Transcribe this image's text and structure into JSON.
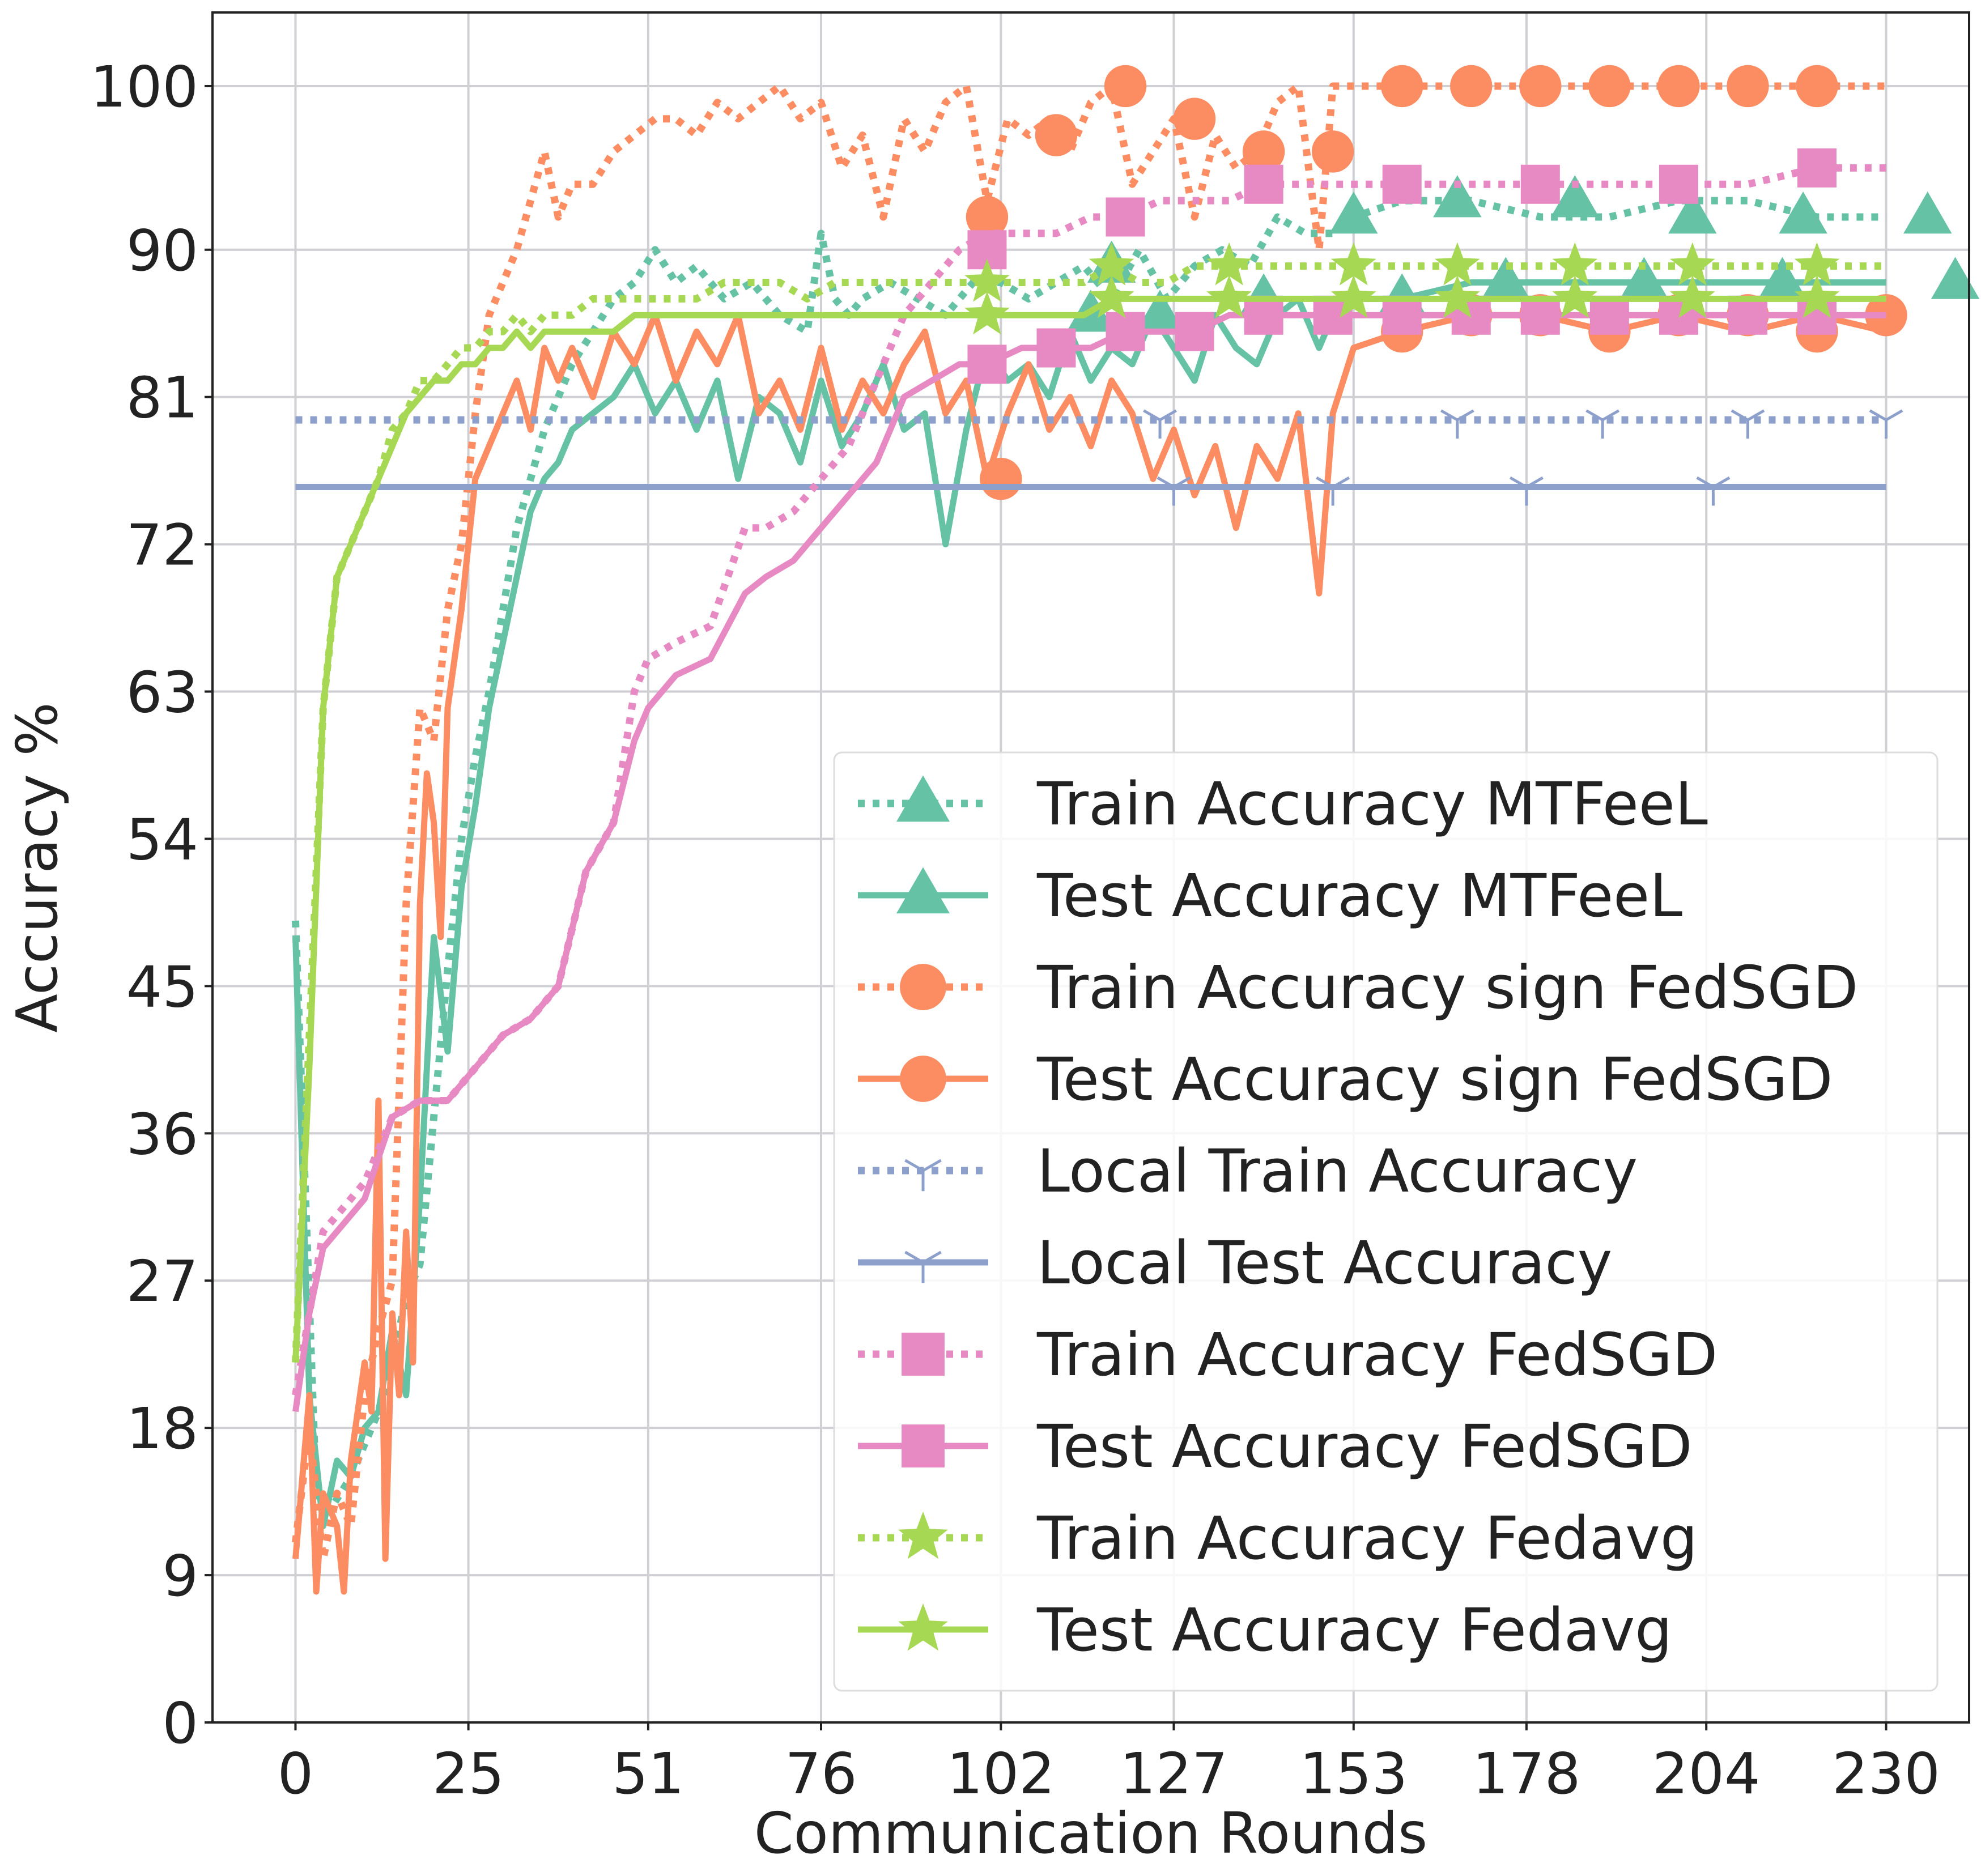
{
  "chart_data": {
    "type": "line",
    "title": "",
    "xlabel": "Communication Rounds",
    "ylabel": "Accuracy %",
    "xlim": [
      -12,
      242
    ],
    "ylim": [
      0,
      104.5
    ],
    "xticks": [
      0,
      25,
      51,
      76,
      102,
      127,
      153,
      178,
      204,
      230
    ],
    "xtick_labels": [
      "0",
      "25",
      "51",
      "76",
      "102",
      "127",
      "153",
      "178",
      "204",
      "230"
    ],
    "yticks": [
      0,
      9,
      18,
      27,
      36,
      45,
      54,
      63,
      72,
      81,
      90,
      100
    ],
    "ytick_labels": [
      "0",
      "9",
      "18",
      "27",
      "36",
      "45",
      "54",
      "63",
      "72",
      "81",
      "90",
      "100"
    ],
    "grid": true,
    "legend_position": "lower-right",
    "series": [
      {
        "name": "Train Accuracy MTFeeL",
        "color": "#66c2a5",
        "style": "dotted",
        "marker": "triangle",
        "x": [
          0,
          3,
          5,
          8,
          10,
          12,
          14,
          16,
          18,
          20,
          22,
          24,
          26,
          28,
          30,
          32,
          34,
          36,
          38,
          40,
          43,
          46,
          49,
          52,
          55,
          58,
          62,
          66,
          70,
          74,
          76,
          78,
          80,
          82,
          86,
          90,
          94,
          98,
          102,
          106,
          110,
          114,
          118,
          122,
          126,
          130,
          134,
          138,
          142,
          146,
          150,
          153,
          160,
          170,
          180,
          190,
          200,
          210,
          220,
          230
        ],
        "y": [
          49,
          14,
          13,
          15,
          17,
          19,
          22,
          26,
          28,
          37,
          46,
          54,
          59,
          63,
          68,
          73,
          76,
          79,
          81,
          83,
          85,
          87,
          88,
          90,
          88,
          89,
          87,
          88,
          86,
          85,
          91,
          87,
          86,
          87,
          88,
          87,
          86,
          88,
          88,
          87,
          88,
          89,
          87,
          90,
          87,
          89,
          90,
          89,
          92,
          91,
          91,
          92,
          93,
          93,
          92,
          92,
          93,
          93,
          92,
          92
        ],
        "marker_x": [
          118,
          153,
          168,
          185,
          202,
          218,
          236
        ],
        "marker_y": [
          89,
          92,
          93,
          93,
          92,
          92,
          92
        ]
      },
      {
        "name": "Test Accuracy MTFeeL",
        "color": "#66c2a5",
        "style": "solid",
        "marker": "triangle",
        "x": [
          0,
          2,
          4,
          6,
          8,
          10,
          12,
          14,
          16,
          18,
          20,
          22,
          24,
          26,
          28,
          30,
          32,
          34,
          36,
          38,
          40,
          43,
          46,
          49,
          52,
          55,
          58,
          61,
          64,
          67,
          70,
          73,
          76,
          79,
          82,
          85,
          88,
          91,
          94,
          97,
          100,
          103,
          106,
          109,
          112,
          115,
          118,
          121,
          124,
          127,
          130,
          133,
          136,
          139,
          142,
          145,
          148,
          150,
          153,
          160,
          170,
          180,
          190,
          200,
          210,
          220,
          230
        ],
        "y": [
          48,
          20,
          12,
          16,
          15,
          18,
          19,
          24,
          20,
          32,
          48,
          41,
          51,
          56,
          62,
          66,
          70,
          74,
          76,
          77,
          79,
          80,
          81,
          83,
          80,
          82,
          79,
          82,
          76,
          81,
          80,
          77,
          82,
          78,
          80,
          83,
          79,
          80,
          72,
          79,
          84,
          82,
          83,
          81,
          85,
          82,
          84,
          83,
          86,
          84,
          82,
          86,
          84,
          83,
          86,
          87,
          84,
          86,
          87,
          87,
          88,
          88,
          88,
          88,
          88,
          88,
          88
        ],
        "marker_x": [
          115,
          125,
          140,
          160,
          175,
          195,
          215,
          240
        ],
        "marker_y": [
          86,
          86,
          87,
          87,
          88,
          88,
          88,
          88
        ]
      },
      {
        "name": "Train Accuracy sign FedSGD",
        "color": "#fc8d62",
        "style": "dotted",
        "marker": "circle",
        "x": [
          0,
          2,
          4,
          6,
          8,
          10,
          12,
          14,
          16,
          18,
          20,
          22,
          24,
          26,
          28,
          30,
          32,
          34,
          36,
          38,
          40,
          43,
          46,
          49,
          52,
          55,
          58,
          61,
          64,
          67,
          70,
          73,
          76,
          79,
          82,
          85,
          88,
          91,
          94,
          97,
          100,
          103,
          106,
          109,
          112,
          115,
          118,
          121,
          124,
          127,
          130,
          133,
          136,
          139,
          142,
          145,
          148,
          150,
          153,
          160,
          170,
          180,
          190,
          200,
          210,
          220,
          230
        ],
        "y": [
          11,
          18,
          10,
          14,
          12,
          20,
          24,
          27,
          50,
          62,
          60,
          68,
          72,
          80,
          86,
          88,
          90,
          93,
          96,
          92,
          94,
          94,
          96,
          97,
          98,
          98,
          97,
          99,
          98,
          99,
          100,
          98,
          99,
          95,
          97,
          92,
          98,
          96,
          99,
          100,
          93,
          98,
          97,
          98,
          96,
          99,
          100,
          94,
          96,
          98,
          92,
          97,
          95,
          96,
          99,
          100,
          90,
          100,
          100,
          100,
          100,
          100,
          100,
          100,
          100,
          100,
          100
        ],
        "marker_x": [
          100,
          110,
          120,
          130,
          140,
          150,
          160,
          170,
          180,
          190,
          200,
          210,
          220
        ],
        "marker_y": [
          92,
          97,
          100,
          98,
          96,
          96,
          100,
          100,
          100,
          100,
          100,
          100,
          100
        ]
      },
      {
        "name": "Test Accuracy sign FedSGD",
        "color": "#fc8d62",
        "style": "solid",
        "marker": "circle",
        "x": [
          0,
          2,
          3,
          4,
          6,
          7,
          8,
          10,
          11,
          12,
          13,
          14,
          15,
          16,
          17,
          18,
          19,
          20,
          21,
          22,
          24,
          26,
          28,
          30,
          32,
          34,
          36,
          38,
          40,
          43,
          46,
          49,
          52,
          55,
          58,
          61,
          64,
          67,
          70,
          73,
          76,
          79,
          82,
          85,
          88,
          91,
          94,
          97,
          100,
          103,
          106,
          109,
          112,
          115,
          118,
          121,
          124,
          127,
          130,
          133,
          136,
          139,
          142,
          145,
          148,
          150,
          153,
          160,
          170,
          180,
          190,
          200,
          210,
          220,
          230
        ],
        "y": [
          10,
          20,
          8,
          14,
          12,
          8,
          16,
          22,
          19,
          38,
          10,
          25,
          20,
          30,
          22,
          50,
          58,
          55,
          48,
          62,
          68,
          76,
          78,
          80,
          82,
          79,
          84,
          82,
          84,
          81,
          85,
          83,
          86,
          82,
          85,
          83,
          86,
          80,
          82,
          79,
          84,
          79,
          82,
          80,
          83,
          85,
          80,
          82,
          76,
          80,
          83,
          79,
          81,
          78,
          82,
          80,
          76,
          79,
          75,
          78,
          73,
          78,
          76,
          80,
          69,
          80,
          84,
          85,
          86,
          86,
          85,
          86,
          85,
          86,
          85
        ],
        "marker_x": [
          102,
          160,
          170,
          180,
          190,
          200,
          210,
          220,
          230
        ],
        "marker_y": [
          76,
          85,
          86,
          86,
          85,
          86,
          86,
          85,
          86
        ]
      },
      {
        "name": "Local Train Accuracy",
        "color": "#8da0cb",
        "style": "dotted",
        "marker": "tri_down",
        "x": [
          0,
          230
        ],
        "y": [
          79.6,
          79.6
        ],
        "marker_x": [
          125,
          168,
          189,
          210,
          230
        ],
        "marker_y": [
          79.6,
          79.6,
          79.6,
          79.6,
          79.6
        ]
      },
      {
        "name": "Local Test Accuracy",
        "color": "#8da0cb",
        "style": "solid",
        "marker": "tri_down",
        "x": [
          0,
          230
        ],
        "y": [
          75.5,
          75.5
        ],
        "marker_x": [
          127,
          150,
          178,
          205
        ],
        "marker_y": [
          75.5,
          75.5,
          75.5,
          75.5
        ]
      },
      {
        "name": "Train Accuracy FedSGD",
        "color": "#e78ac3",
        "style": "dotted",
        "marker": "square",
        "x": [
          0,
          2,
          4,
          6,
          8,
          10,
          14,
          18,
          22,
          26,
          30,
          34,
          38,
          42,
          46,
          49,
          51,
          55,
          60,
          65,
          68,
          72,
          76,
          80,
          84,
          88,
          92,
          96,
          100,
          105,
          110,
          115,
          120,
          125,
          130,
          135,
          140,
          145,
          150,
          160,
          170,
          180,
          190,
          200,
          210,
          220,
          230
        ],
        "y": [
          20,
          25,
          30,
          31,
          32,
          33,
          37,
          38,
          38,
          40,
          42,
          43,
          45,
          52,
          55,
          63,
          65,
          66,
          67,
          73,
          73,
          74,
          76,
          78,
          82,
          86,
          88,
          90,
          91,
          91,
          91,
          92,
          92,
          93,
          93,
          93,
          94,
          94,
          94,
          94,
          94,
          94,
          94,
          94,
          94,
          95,
          95
        ],
        "marker_x": [
          100,
          120,
          140,
          160,
          180,
          200,
          220
        ],
        "marker_y": [
          90,
          92,
          94,
          94,
          94,
          94,
          95
        ]
      },
      {
        "name": "Test Accuracy FedSGD",
        "color": "#e78ac3",
        "style": "solid",
        "marker": "square",
        "x": [
          0,
          2,
          4,
          6,
          8,
          10,
          14,
          18,
          22,
          26,
          30,
          34,
          38,
          42,
          46,
          49,
          51,
          55,
          60,
          65,
          68,
          72,
          76,
          80,
          84,
          88,
          92,
          96,
          100,
          105,
          110,
          115,
          120,
          125,
          130,
          135,
          140,
          145,
          150,
          160,
          170,
          180,
          190,
          200,
          210,
          220,
          230
        ],
        "y": [
          19,
          25,
          29,
          30,
          31,
          32,
          37,
          38,
          38,
          40,
          42,
          43,
          45,
          52,
          55,
          60,
          62,
          64,
          65,
          69,
          70,
          71,
          73,
          75,
          77,
          81,
          82,
          83,
          83,
          84,
          84,
          84,
          85,
          85,
          85,
          86,
          86,
          86,
          86,
          86,
          86,
          86,
          86,
          86,
          86,
          86,
          86
        ],
        "marker_x": [
          100,
          110,
          120,
          130,
          140,
          150,
          160,
          170,
          180,
          190,
          200,
          210,
          220
        ],
        "marker_y": [
          83,
          84,
          85,
          85,
          86,
          86,
          86,
          86,
          86,
          86,
          86,
          86,
          86
        ]
      },
      {
        "name": "Train Accuracy Fedavg",
        "color": "#a6d854",
        "style": "dotted",
        "marker": "star",
        "x": [
          0,
          2,
          4,
          6,
          8,
          10,
          12,
          14,
          16,
          18,
          20,
          22,
          24,
          26,
          28,
          30,
          32,
          34,
          36,
          38,
          40,
          43,
          46,
          49,
          52,
          55,
          58,
          62,
          66,
          70,
          74,
          78,
          82,
          86,
          90,
          94,
          98,
          102,
          106,
          110,
          114,
          118,
          122,
          126,
          130,
          134,
          138,
          142,
          146,
          150,
          153,
          160,
          170,
          180,
          190,
          200,
          210,
          220,
          230
        ],
        "y": [
          22,
          42,
          62,
          70,
          72,
          74,
          76,
          79,
          80,
          82,
          82,
          83,
          84,
          84,
          85,
          85,
          86,
          85,
          86,
          86,
          86,
          87,
          87,
          87,
          87,
          87,
          87,
          88,
          88,
          88,
          87,
          88,
          88,
          88,
          88,
          88,
          88,
          88,
          88,
          88,
          88,
          89,
          88,
          88,
          89,
          89,
          89,
          89,
          89,
          89,
          89,
          89,
          89,
          89,
          89,
          89,
          89,
          89,
          89
        ],
        "marker_x": [
          100,
          118,
          135,
          153,
          168,
          185,
          202,
          220
        ],
        "marker_y": [
          88,
          89,
          89,
          89,
          89,
          89,
          89,
          89
        ]
      },
      {
        "name": "Test Accuracy Fedavg",
        "color": "#a6d854",
        "style": "solid",
        "marker": "star",
        "x": [
          0,
          2,
          4,
          6,
          8,
          10,
          12,
          14,
          16,
          18,
          20,
          22,
          24,
          26,
          28,
          30,
          32,
          34,
          36,
          38,
          40,
          43,
          46,
          49,
          52,
          55,
          58,
          62,
          66,
          70,
          74,
          78,
          82,
          86,
          90,
          94,
          98,
          102,
          106,
          110,
          114,
          118,
          122,
          126,
          130,
          134,
          138,
          142,
          146,
          150,
          153,
          160,
          170,
          180,
          190,
          200,
          210,
          220,
          230
        ],
        "y": [
          22,
          40,
          62,
          70,
          72,
          74,
          76,
          78,
          80,
          81,
          82,
          82,
          83,
          83,
          84,
          84,
          85,
          84,
          85,
          85,
          85,
          85,
          85,
          86,
          86,
          86,
          86,
          86,
          86,
          86,
          86,
          86,
          86,
          86,
          86,
          86,
          86,
          86,
          86,
          86,
          86,
          87,
          87,
          87,
          87,
          87,
          87,
          87,
          87,
          87,
          87,
          87,
          87,
          87,
          87,
          87,
          87,
          87,
          87
        ],
        "marker_x": [
          100,
          118,
          135,
          153,
          168,
          185,
          202,
          220
        ],
        "marker_y": [
          86,
          87,
          87,
          87,
          87,
          87,
          87,
          87
        ]
      }
    ]
  }
}
